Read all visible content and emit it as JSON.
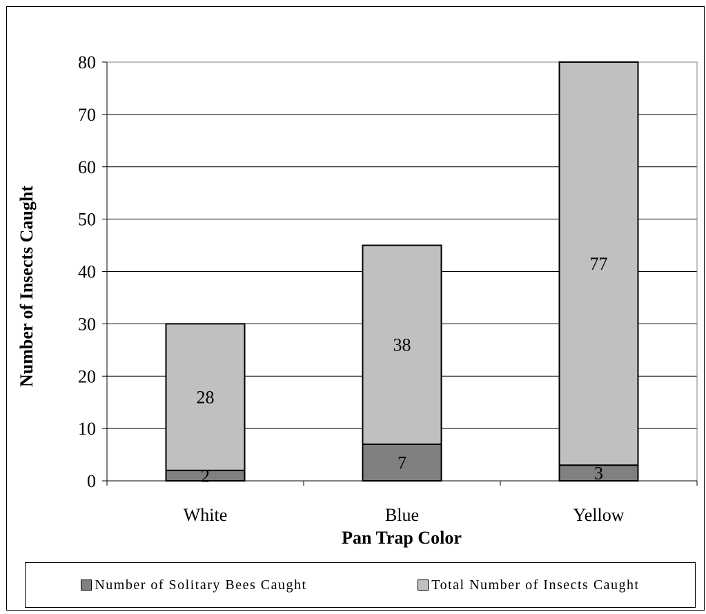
{
  "chart_data": {
    "type": "bar",
    "stacked": true,
    "categories": [
      "White",
      "Blue",
      "Yellow"
    ],
    "series": [
      {
        "name": "Number of Solitary Bees Caught",
        "values": [
          2,
          7,
          3
        ],
        "color": "#808080"
      },
      {
        "name": "Total Number of Insects Caught",
        "values": [
          28,
          38,
          77
        ],
        "color": "#c0c0c0"
      }
    ],
    "xlabel": "Pan Trap Color",
    "ylabel": "Number of Insects Caught",
    "ylim": [
      0,
      80
    ],
    "yticks": [
      0,
      10,
      20,
      30,
      40,
      50,
      60,
      70,
      80
    ],
    "grid": true,
    "legend_position": "bottom"
  }
}
